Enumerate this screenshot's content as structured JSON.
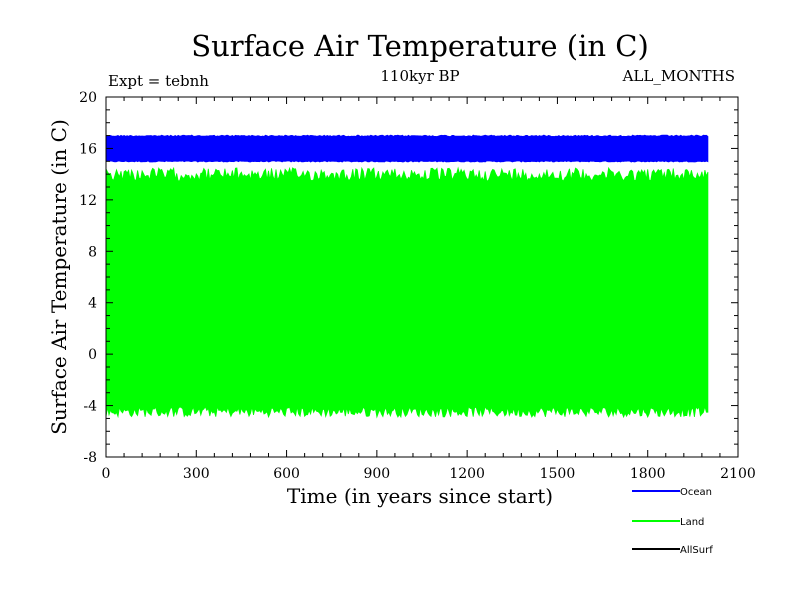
{
  "chart_data": {
    "type": "line",
    "title": "Surface Air Temperature (in C)",
    "experiment_label": "Expt = tebnh",
    "period_label": "110kyr BP",
    "months_label": "ALL_MONTHS",
    "xlabel": "Time (in years since start)",
    "ylabel": "Surface Air Temperature (in C)",
    "xlim": [
      0,
      2100
    ],
    "ylim": [
      -8,
      20
    ],
    "xticks": [
      0,
      300,
      600,
      900,
      1200,
      1500,
      1800,
      2100
    ],
    "yticks": [
      -8,
      -4,
      0,
      4,
      8,
      12,
      16,
      20
    ],
    "x_minor_step": 60,
    "y_minor_step": 1,
    "series": [
      {
        "name": "Ocean",
        "color": "#0000ff",
        "x_range": [
          0,
          2000
        ],
        "min_approx": 14.9,
        "max_approx": 17.1
      },
      {
        "name": "Land",
        "color": "#00ff00",
        "x_range": [
          0,
          2000
        ],
        "min_approx": -5.3,
        "max_approx": 15.1
      },
      {
        "name": "AllSurf",
        "color": "#000000",
        "x_range": [
          0,
          2000
        ],
        "min_approx": null,
        "max_approx": null
      }
    ],
    "legend_position": "bottom-right"
  }
}
